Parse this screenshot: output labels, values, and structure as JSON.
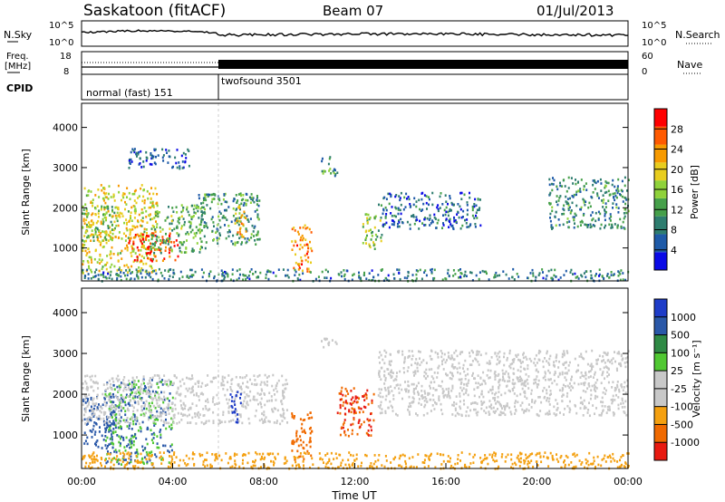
{
  "header": {
    "station": "Saskatoon (fitACF)",
    "beam": "Beam 07",
    "date": "01/Jul/2013"
  },
  "noise_panel": {
    "left_label": "N.Sky",
    "right_label": "N.Search",
    "left_ticks": [
      "10^5",
      "10^0"
    ],
    "right_ticks": [
      "10^5",
      "10^0"
    ]
  },
  "freq_panel": {
    "left_label_1": "Freq.",
    "left_label_2": "[MHz]",
    "right_label": "Nave",
    "left_ticks": [
      "18",
      "8"
    ],
    "right_ticks": [
      "60",
      "0"
    ]
  },
  "cpid_panel": {
    "label": "CPID",
    "programs": [
      {
        "name": "normal (fast) 151",
        "start_hour": 0,
        "end_hour": 6
      },
      {
        "name": "twofsound 3501",
        "start_hour": 6,
        "end_hour": 24
      }
    ]
  },
  "power_panel": {
    "ylabel": "Slant Range [km]",
    "cbar_label": "Power [dB]",
    "cbar_ticks": [
      "28",
      "24",
      "20",
      "16",
      "12",
      "8",
      "4"
    ],
    "cbar_colors": [
      "#ff0000",
      "#ff5a00",
      "#f79a00",
      "#e8cd1e",
      "#8fd23a",
      "#46a04a",
      "#2e7d6f",
      "#1e5aa8",
      "#0a0ae6"
    ]
  },
  "velocity_panel": {
    "ylabel": "Slant Range [km]",
    "cbar_label": "Velocity [m s⁻¹]",
    "cbar_ticks": [
      "1000",
      "500",
      "100",
      "25",
      "-25",
      "-100",
      "-500",
      "-1000"
    ],
    "cbar_colors": [
      "#1e3cc8",
      "#2a58a8",
      "#2f8a45",
      "#50c832",
      "#c8c8c8",
      "#c8c8c8",
      "#f4a010",
      "#f06a00",
      "#e81a10"
    ]
  },
  "x_axis": {
    "label": "Time UT",
    "ticks": [
      "00:00",
      "04:00",
      "08:00",
      "12:00",
      "16:00",
      "20:00",
      "00:00"
    ]
  },
  "chart_data": {
    "type": "heatmap",
    "title": "Saskatoon (fitACF)   Beam 07   01/Jul/2013",
    "xlabel": "Time UT",
    "ylabel": "Slant Range [km]",
    "x_range_hours": [
      0,
      24
    ],
    "y_range_km": [
      180,
      4600
    ],
    "y_ticks": [
      1000,
      2000,
      3000,
      4000
    ],
    "power_colorbar": {
      "label": "Power [dB]",
      "range": [
        0,
        30
      ],
      "ticks": [
        4,
        8,
        12,
        16,
        20,
        24,
        28
      ]
    },
    "velocity_colorbar": {
      "label": "Velocity [m s⁻¹]",
      "ticks": [
        1000,
        500,
        100,
        25,
        -25,
        -100,
        -500,
        -1000
      ]
    },
    "cpid_segments": [
      {
        "name": "normal (fast) 151",
        "start_hour": 0,
        "end_hour": 6
      },
      {
        "name": "twofsound 3501",
        "start_hour": 6,
        "end_hour": 24
      }
    ],
    "power_regions": [
      {
        "t0": 0.0,
        "t1": 3.3,
        "r0": 400,
        "r1": 2600,
        "db": 18
      },
      {
        "t0": 2.0,
        "t1": 4.2,
        "r0": 700,
        "r1": 1400,
        "db": 26
      },
      {
        "t0": 0.0,
        "t1": 1.5,
        "r0": 1200,
        "r1": 2100,
        "db": 14
      },
      {
        "t0": 3.0,
        "t1": 5.5,
        "r0": 900,
        "r1": 2100,
        "db": 12
      },
      {
        "t0": 5.0,
        "t1": 7.8,
        "r0": 1100,
        "r1": 2400,
        "db": 10
      },
      {
        "t0": 6.7,
        "t1": 7.2,
        "r0": 1300,
        "r1": 2100,
        "db": 22
      },
      {
        "t0": 9.2,
        "t1": 10.1,
        "r0": 400,
        "r1": 1600,
        "db": 22
      },
      {
        "t0": 10.5,
        "t1": 11.2,
        "r0": 2800,
        "r1": 3300,
        "db": 10
      },
      {
        "t0": 12.3,
        "t1": 13.2,
        "r0": 1000,
        "r1": 1900,
        "db": 14
      },
      {
        "t0": 13.0,
        "t1": 17.5,
        "r0": 1500,
        "r1": 2400,
        "db": 6
      },
      {
        "t0": 20.5,
        "t1": 24.0,
        "r0": 1500,
        "r1": 2800,
        "db": 9
      },
      {
        "t0": 2.0,
        "t1": 4.7,
        "r0": 3000,
        "r1": 3500,
        "db": 5
      },
      {
        "t0": 0.0,
        "t1": 24.0,
        "r0": 200,
        "r1": 500,
        "db": 8
      }
    ],
    "velocity_regions": [
      {
        "t0": 0.0,
        "t1": 1.5,
        "r0": 700,
        "r1": 2000,
        "v": 150
      },
      {
        "t0": 1.0,
        "t1": 4.0,
        "r0": 300,
        "r1": 2400,
        "v": 100
      },
      {
        "t0": 0.0,
        "t1": 9.0,
        "r0": 1300,
        "r1": 2500,
        "v": 0
      },
      {
        "t0": 6.5,
        "t1": 7.0,
        "r0": 1300,
        "r1": 2100,
        "v": 800
      },
      {
        "t0": 9.2,
        "t1": 10.1,
        "r0": 400,
        "r1": 1600,
        "v": -300
      },
      {
        "t0": 11.2,
        "t1": 12.8,
        "r0": 1000,
        "r1": 2200,
        "v": -500
      },
      {
        "t0": 10.5,
        "t1": 11.2,
        "r0": 3100,
        "r1": 3400,
        "v": 0
      },
      {
        "t0": 13.0,
        "t1": 24.0,
        "r0": 1500,
        "r1": 3100,
        "v": 0
      },
      {
        "t0": 0.0,
        "t1": 24.0,
        "r0": 200,
        "r1": 600,
        "v": -60
      }
    ]
  }
}
